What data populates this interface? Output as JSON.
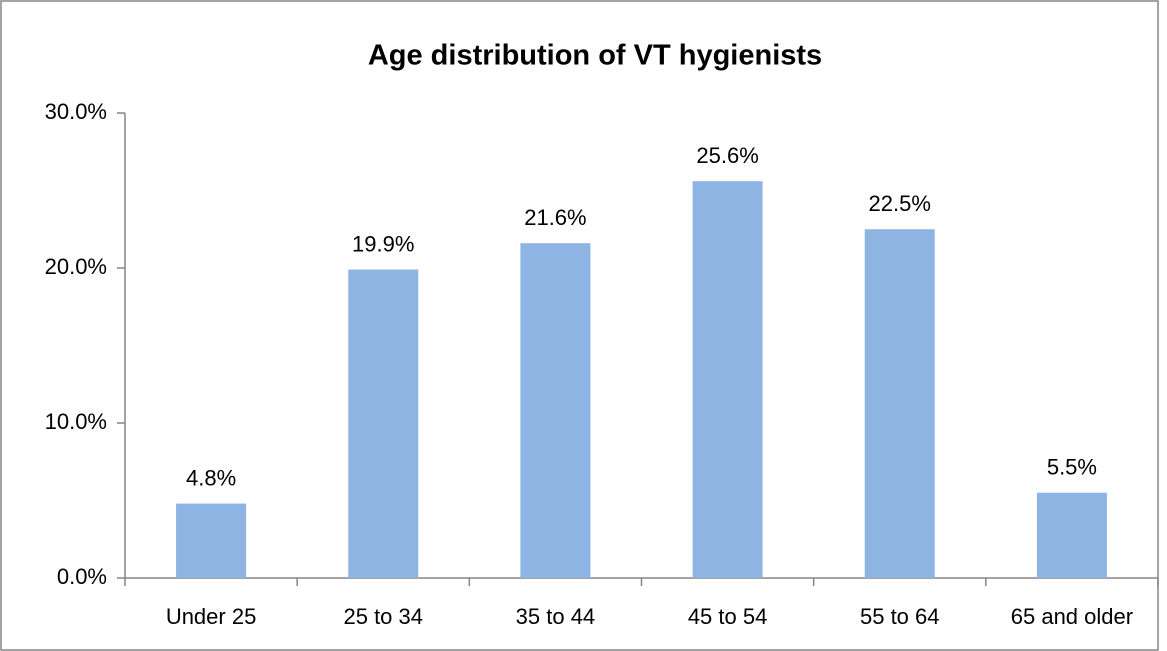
{
  "chart_data": {
    "type": "bar",
    "title": "Age distribution of VT hygienists",
    "categories": [
      "Under 25",
      "25 to 34",
      "35 to 44",
      "45 to 54",
      "55 to 64",
      "65 and older"
    ],
    "values": [
      4.8,
      19.9,
      21.6,
      25.6,
      22.5,
      5.5
    ],
    "value_labels": [
      "4.8%",
      "19.9%",
      "21.6%",
      "25.6%",
      "22.5%",
      "5.5%"
    ],
    "color": "#8db4e2",
    "ylim": [
      0,
      30
    ],
    "yticks": [
      {
        "value": 0,
        "label": "0.0%"
      },
      {
        "value": 10,
        "label": "10.0%"
      },
      {
        "value": 20,
        "label": "20.0%"
      },
      {
        "value": 30,
        "label": "30.0%"
      }
    ],
    "grid": false
  }
}
